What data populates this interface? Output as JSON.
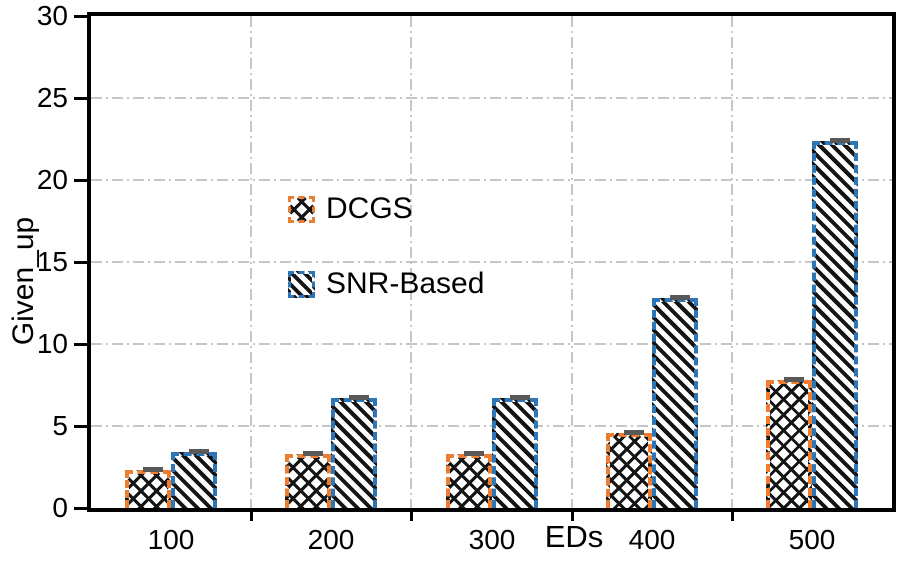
{
  "figure": {
    "background": "#ffffff"
  },
  "chart_data": {
    "type": "bar",
    "title": "",
    "categories": [
      "100",
      "200",
      "300",
      "400",
      "500"
    ],
    "series": [
      {
        "name": "DCGS",
        "values": [
          2.3,
          3.3,
          3.3,
          4.6,
          7.8
        ],
        "border_color": "#ED7D31",
        "border_style": "dashed",
        "fill_color": "#ffffff",
        "hatch": "diamond-crosshatch",
        "hatch_color": "#141414",
        "error_cap_color": "#595959"
      },
      {
        "name": "SNR-Based",
        "values": [
          3.4,
          6.7,
          6.7,
          12.8,
          22.4
        ],
        "border_color": "#2E75B6",
        "border_style": "dashed",
        "fill_color": "#ffffff",
        "hatch": "diagonal-down-dense",
        "hatch_color": "#141414",
        "error_cap_color": "#595959"
      }
    ],
    "xlabel": "EDs",
    "ylabel": "Given_up",
    "ylim": [
      0,
      30
    ],
    "yticks": [
      0,
      5,
      10,
      15,
      20,
      25,
      30
    ],
    "grid": {
      "style": "dash-dot",
      "color": "#c6c6c6",
      "horizontal": true,
      "vertical": true
    },
    "legend": {
      "position": "inside-center-left",
      "entries": [
        "DCGS",
        "SNR-Based"
      ]
    },
    "axis_color": "#000000"
  }
}
